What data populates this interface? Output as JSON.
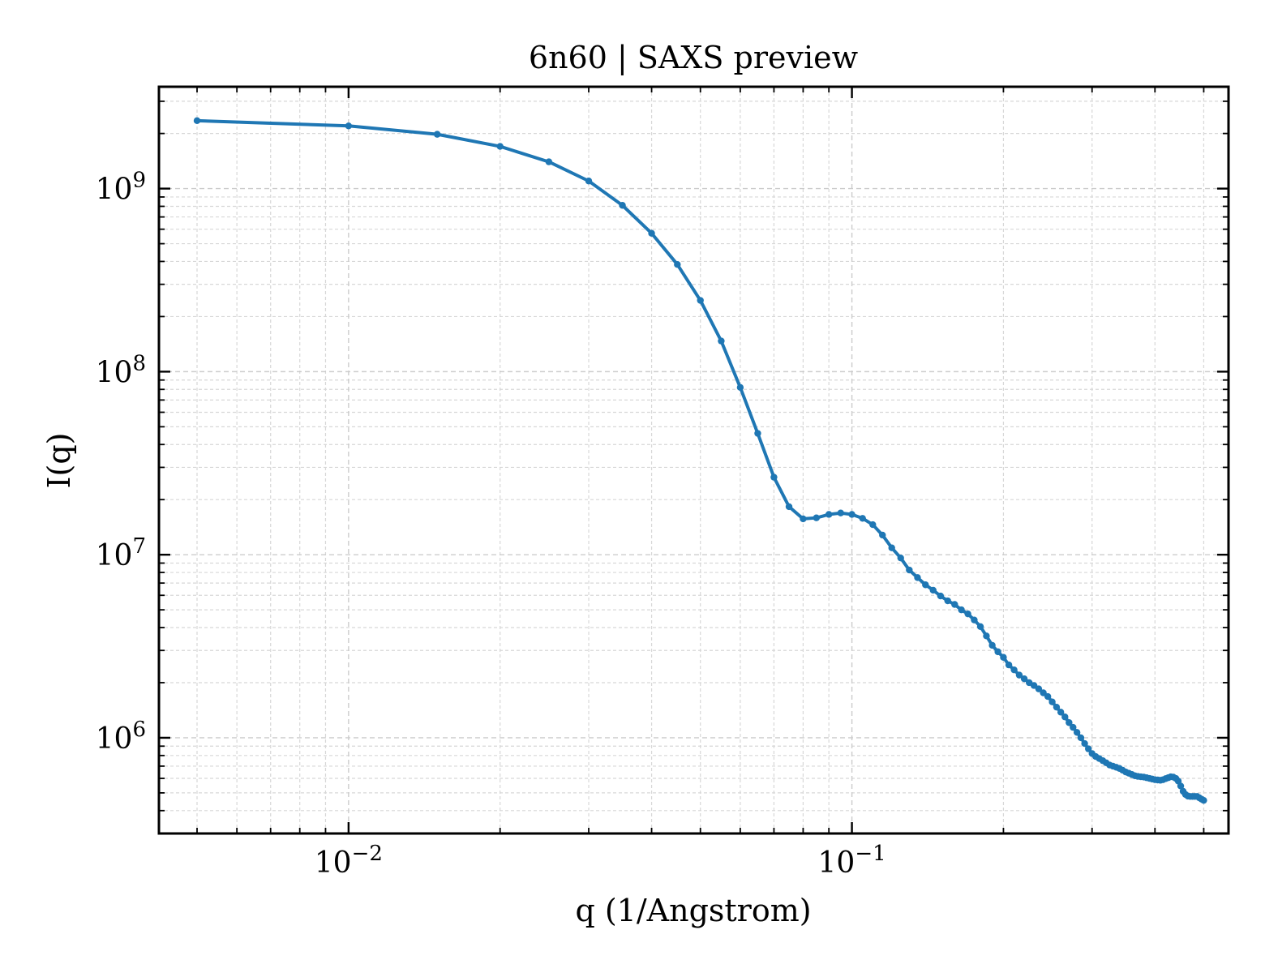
{
  "chart_data": {
    "type": "line",
    "title": "6n60 | SAXS preview",
    "xlabel": "q (1/Angstrom)",
    "ylabel": "I(q)",
    "x_scale": "log",
    "y_scale": "log",
    "xlim": [
      0.0042,
      0.56
    ],
    "ylim": [
      300000,
      3600000000
    ],
    "grid": true,
    "x_ticks": [
      {
        "value": 0.01,
        "mantissa": "10",
        "exponent": "−2"
      },
      {
        "value": 0.1,
        "mantissa": "10",
        "exponent": "−1"
      }
    ],
    "y_ticks": [
      {
        "value": 1000000,
        "mantissa": "10",
        "exponent": "6"
      },
      {
        "value": 10000000,
        "mantissa": "10",
        "exponent": "7"
      },
      {
        "value": 100000000,
        "mantissa": "10",
        "exponent": "8"
      },
      {
        "value": 1000000000,
        "mantissa": "10",
        "exponent": "9"
      }
    ],
    "series": [
      {
        "color": "#1f77b4",
        "marker": "circle",
        "x": [
          0.005,
          0.01,
          0.015,
          0.02,
          0.025,
          0.03,
          0.035,
          0.04,
          0.045,
          0.05,
          0.055,
          0.06,
          0.065,
          0.07,
          0.075,
          0.08,
          0.085,
          0.09,
          0.095,
          0.1,
          0.105,
          0.11,
          0.115,
          0.12,
          0.125,
          0.13,
          0.135,
          0.14,
          0.145,
          0.15,
          0.155,
          0.16,
          0.165,
          0.17,
          0.175,
          0.18,
          0.185,
          0.19,
          0.195,
          0.2,
          0.205,
          0.21,
          0.215,
          0.22,
          0.225,
          0.23,
          0.235,
          0.24,
          0.245,
          0.25,
          0.255,
          0.26,
          0.265,
          0.27,
          0.275,
          0.28,
          0.285,
          0.29,
          0.295,
          0.3,
          0.305,
          0.31,
          0.315,
          0.32,
          0.325,
          0.33,
          0.335,
          0.34,
          0.345,
          0.35,
          0.355,
          0.36,
          0.365,
          0.37,
          0.375,
          0.38,
          0.385,
          0.39,
          0.395,
          0.4,
          0.405,
          0.41,
          0.415,
          0.42,
          0.425,
          0.43,
          0.435,
          0.44,
          0.445,
          0.45,
          0.455,
          0.46,
          0.465,
          0.47,
          0.475,
          0.48,
          0.485,
          0.49,
          0.495,
          0.5
        ],
        "y": [
          2350000000,
          2200000000,
          1980000000,
          1700000000,
          1400000000,
          1100000000,
          810000000,
          570000000,
          385000000,
          245000000,
          147000000,
          82000000,
          46000000,
          26500000,
          18300000,
          15700000,
          15900000,
          16600000,
          16900000,
          16600000,
          15800000,
          14600000,
          12800000,
          10900000,
          9600000,
          8250000,
          7500000,
          6850000,
          6400000,
          5950000,
          5600000,
          5350000,
          5000000,
          4750000,
          4400000,
          4050000,
          3600000,
          3200000,
          2950000,
          2750000,
          2500000,
          2350000,
          2200000,
          2100000,
          2000000,
          1930000,
          1850000,
          1760000,
          1680000,
          1570000,
          1470000,
          1380000,
          1300000,
          1210000,
          1140000,
          1070000,
          1000000,
          930000,
          870000,
          820000,
          790000,
          770000,
          750000,
          730000,
          710000,
          700000,
          690000,
          680000,
          665000,
          650000,
          640000,
          630000,
          620000,
          615000,
          612000,
          610000,
          605000,
          600000,
          595000,
          590000,
          588000,
          586000,
          590000,
          598000,
          605000,
          612000,
          610000,
          600000,
          580000,
          545000,
          510000,
          490000,
          480000,
          478000,
          478000,
          478000,
          478000,
          470000,
          462000,
          455000
        ]
      }
    ]
  }
}
